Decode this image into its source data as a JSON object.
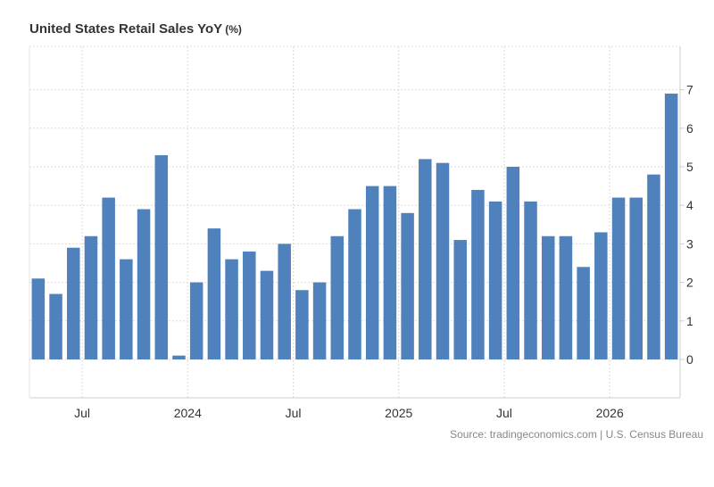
{
  "header": {
    "title": "United States Retail Sales YoY",
    "unit": "(%)"
  },
  "footer": {
    "source": "Source: tradingeconomics.com | U.S. Census Bureau"
  },
  "chart_data": {
    "type": "bar",
    "title": "United States Retail Sales YoY",
    "xlabel": "",
    "ylabel": "",
    "ylim": [
      -1,
      8
    ],
    "yticks": [
      0,
      1,
      2,
      3,
      4,
      5,
      6,
      7
    ],
    "grid": true,
    "bar_color": "#4f81bd",
    "x_tick_labels": [
      {
        "label": "Jul",
        "month": "2023-07"
      },
      {
        "label": "2024",
        "month": "2024-01"
      },
      {
        "label": "Jul",
        "month": "2024-07"
      },
      {
        "label": "2025",
        "month": "2025-01"
      },
      {
        "label": "Jul",
        "month": "2025-07"
      },
      {
        "label": "2026",
        "month": "2026-01"
      }
    ],
    "categories": [
      "2023-04",
      "2023-05",
      "2023-06",
      "2023-07",
      "2023-08",
      "2023-09",
      "2023-10",
      "2023-11",
      "2023-12",
      "2024-01",
      "2024-02",
      "2024-03",
      "2024-04",
      "2024-05",
      "2024-06",
      "2024-07",
      "2024-08",
      "2024-09",
      "2024-10",
      "2024-11",
      "2024-12",
      "2025-01",
      "2025-02",
      "2025-03",
      "2025-04",
      "2025-05",
      "2025-06",
      "2025-07",
      "2025-08",
      "2025-09",
      "2025-10",
      "2025-11",
      "2025-12",
      "2026-01",
      "2026-02",
      "2026-03",
      "2026-04"
    ],
    "values": [
      2.1,
      1.7,
      2.9,
      3.2,
      4.2,
      2.6,
      3.9,
      5.3,
      0.1,
      2.0,
      3.4,
      2.6,
      2.8,
      2.3,
      3.0,
      1.8,
      2.0,
      3.2,
      3.9,
      4.5,
      4.5,
      3.8,
      5.2,
      5.1,
      3.1,
      4.4,
      4.1,
      5.0,
      4.1,
      3.2,
      3.2,
      2.4,
      3.3,
      4.2,
      4.2,
      4.8,
      6.9
    ]
  }
}
